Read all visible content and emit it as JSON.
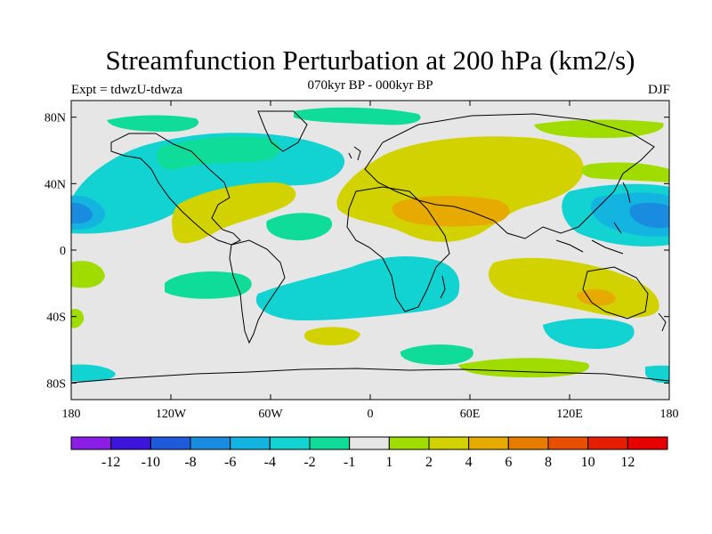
{
  "header": {
    "title": "Streamfunction Perturbation at 200 hPa (km2/s)",
    "subtitle": "070kyr BP - 000kyr BP",
    "left_label": "Expt = tdwzU-tdwza",
    "right_label": "DJF"
  },
  "axes": {
    "lon_ticks": [
      "180",
      "120W",
      "60W",
      "0",
      "60E",
      "120E",
      "180"
    ],
    "lat_ticks": [
      "80N",
      "40N",
      "0",
      "40S",
      "80S"
    ]
  },
  "colorbar": {
    "labels": [
      "-12",
      "-10",
      "-8",
      "-6",
      "-4",
      "-2",
      "-1",
      "1",
      "2",
      "4",
      "6",
      "8",
      "10",
      "12"
    ],
    "colors": [
      "#8b1ee6",
      "#3c14dc",
      "#1e5adc",
      "#1a8ce0",
      "#14b4e0",
      "#12d2d2",
      "#10dc9a",
      "#e6e6e6",
      "#a0dc00",
      "#d2d200",
      "#e6aa00",
      "#e67d00",
      "#e65000",
      "#e61e00",
      "#e60000"
    ]
  },
  "colors": {
    "background": "#e6e6e6",
    "coastline": "#000000"
  }
}
